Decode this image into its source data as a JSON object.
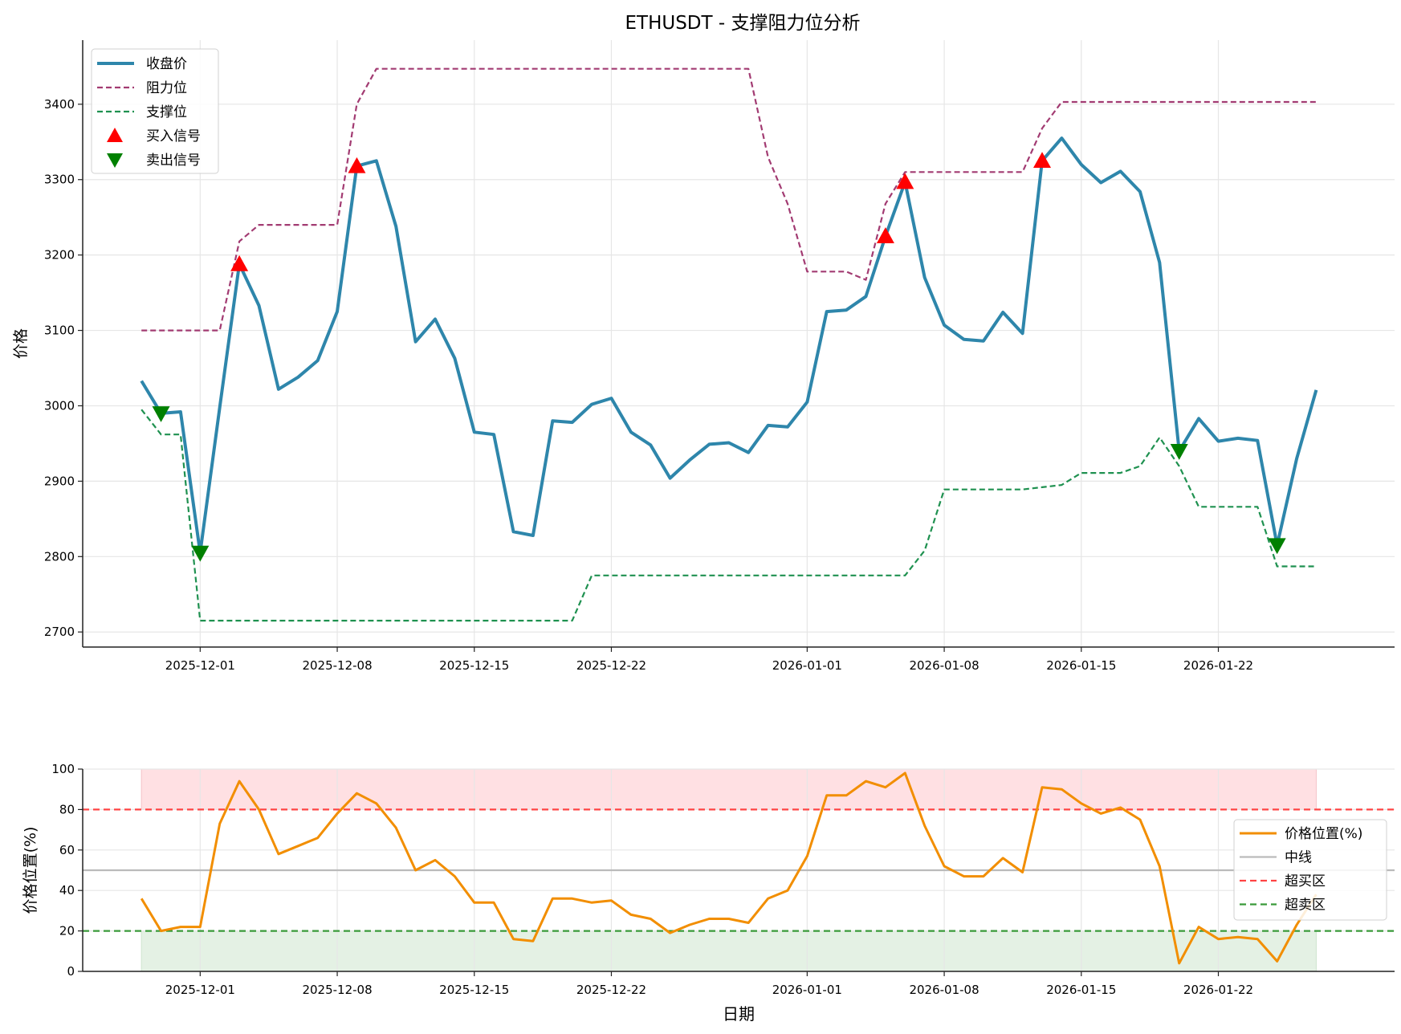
{
  "chart_data": [
    {
      "type": "line",
      "title": "ETHUSDT - 支撑阻力位分析",
      "xlabel": "",
      "ylabel": "价格",
      "start_date": "2025-11-28",
      "xlim": [
        "2025-11-25",
        "2026-01-31"
      ],
      "ylim": [
        2680,
        3485
      ],
      "yticks": [
        2700,
        2800,
        2900,
        3000,
        3100,
        3200,
        3300,
        3400
      ],
      "xticks": [
        "2025-12-01",
        "2025-12-08",
        "2025-12-15",
        "2025-12-22",
        "2026-01-01",
        "2026-01-08",
        "2026-01-15",
        "2026-01-22"
      ],
      "grid": true,
      "legend_position": "top-left",
      "series": [
        {
          "name": "收盘价",
          "color": "#2e86ab",
          "style": "solid",
          "values": [
            3033,
            2990,
            2992,
            2805,
            2998,
            3188,
            3133,
            3022,
            3038,
            3060,
            3125,
            3318,
            3325,
            3238,
            3085,
            3115,
            3063,
            2965,
            2962,
            2833,
            2828,
            2980,
            2978,
            3002,
            3010,
            2965,
            2948,
            2904,
            2928,
            2949,
            2951,
            2938,
            2974,
            2972,
            3005,
            3125,
            3127,
            3145,
            3225,
            3297,
            3170,
            3107,
            3088,
            3086,
            3124,
            3096,
            3325,
            3355,
            3320,
            3296,
            3311,
            3284,
            3190,
            2940,
            2983,
            2953,
            2957,
            2954,
            2815,
            2930,
            3021
          ]
        },
        {
          "name": "阻力位",
          "color": "#a23b72",
          "style": "dashed",
          "values": [
            3100,
            3100,
            3100,
            3100,
            3100,
            3218,
            3240,
            3240,
            3240,
            3240,
            3240,
            3400,
            3447,
            3447,
            3447,
            3447,
            3447,
            3447,
            3447,
            3447,
            3447,
            3447,
            3447,
            3447,
            3447,
            3447,
            3447,
            3447,
            3447,
            3447,
            3447,
            3447,
            3330,
            3268,
            3178,
            3178,
            3178,
            3167,
            3268,
            3310,
            3310,
            3310,
            3310,
            3310,
            3310,
            3310,
            3368,
            3403,
            3403,
            3403,
            3403,
            3403,
            3403,
            3403,
            3403,
            3403,
            3403,
            3403,
            3403,
            3403,
            3403
          ]
        },
        {
          "name": "支撑位",
          "color": "#1f9150",
          "style": "dashed",
          "values": [
            2995,
            2962,
            2962,
            2715,
            2715,
            2715,
            2715,
            2715,
            2715,
            2715,
            2715,
            2715,
            2715,
            2715,
            2715,
            2715,
            2715,
            2715,
            2715,
            2715,
            2715,
            2715,
            2715,
            2775,
            2775,
            2775,
            2775,
            2775,
            2775,
            2775,
            2775,
            2775,
            2775,
            2775,
            2775,
            2775,
            2775,
            2775,
            2775,
            2775,
            2808,
            2889,
            2889,
            2889,
            2889,
            2889,
            2892,
            2895,
            2911,
            2911,
            2911,
            2920,
            2958,
            2920,
            2866,
            2866,
            2866,
            2866,
            2787,
            2787,
            2787
          ]
        }
      ],
      "markers": [
        {
          "name": "买入信号",
          "color": "#ff0000",
          "shape": "triangle-up",
          "indices": [
            5,
            11,
            38,
            39,
            46
          ]
        },
        {
          "name": "卖出信号",
          "color": "#008000",
          "shape": "triangle-down",
          "indices": [
            1,
            3,
            53,
            58
          ]
        }
      ]
    },
    {
      "type": "line",
      "title": "",
      "xlabel": "日期",
      "ylabel": "价格位置(%)",
      "ylim": [
        0,
        100
      ],
      "yticks": [
        0,
        20,
        40,
        60,
        80,
        100
      ],
      "grid": true,
      "legend_position": "right",
      "series": [
        {
          "name": "价格位置(%)",
          "color": "#f28e00",
          "style": "solid",
          "values": [
            36,
            20,
            22,
            22,
            73,
            94,
            80,
            58,
            62,
            66,
            78,
            88,
            83,
            71,
            50,
            55,
            47,
            34,
            34,
            16,
            15,
            36,
            36,
            34,
            35,
            28,
            26,
            19,
            23,
            26,
            26,
            24,
            36,
            40,
            57,
            87,
            87,
            94,
            91,
            98,
            72,
            52,
            47,
            47,
            56,
            49,
            91,
            90,
            83,
            78,
            81,
            75,
            52,
            4,
            22,
            16,
            17,
            16,
            5,
            23,
            38
          ]
        }
      ],
      "reference_lines": [
        {
          "name": "中线",
          "value": 50,
          "color": "#bbbbbb",
          "style": "solid"
        },
        {
          "name": "超买区",
          "value": 80,
          "color": "#ff4444",
          "style": "dashed"
        },
        {
          "name": "超卖区",
          "value": 20,
          "color": "#3a9a3a",
          "style": "dashed"
        }
      ],
      "shaded_bands": [
        {
          "range": [
            80,
            100
          ],
          "color": "#ffe0e3"
        },
        {
          "range": [
            0,
            20
          ],
          "color": "#e4f1e4"
        }
      ]
    }
  ]
}
